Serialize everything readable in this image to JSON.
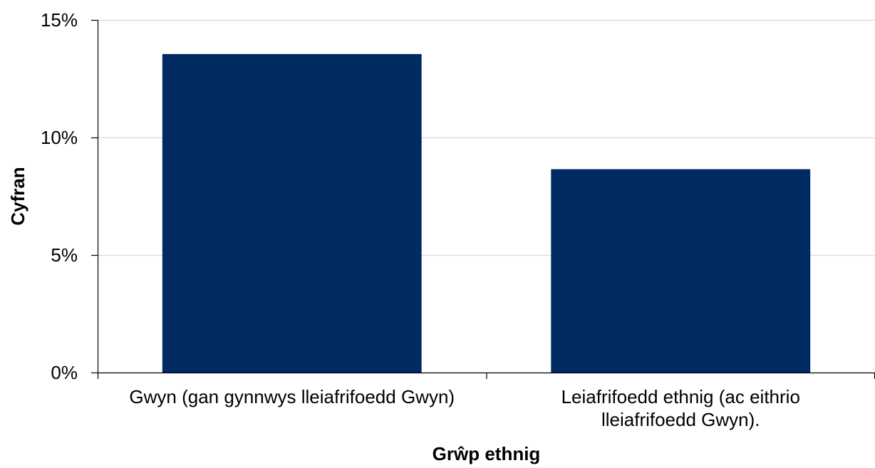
{
  "chart_data": {
    "type": "bar",
    "title": "",
    "xlabel": "Grŵp ethnig",
    "ylabel": "Cyfran",
    "categories": [
      [
        "Gwyn (gan gynnwys lleiafrifoedd Gwyn)"
      ],
      [
        "Leiafrifoedd ethnig (ac eithrio",
        "lleiafrifoedd Gwyn)."
      ]
    ],
    "values": [
      13.55,
      8.65
    ],
    "ylim": [
      0,
      15
    ],
    "yticks": [
      0,
      5,
      10,
      15
    ],
    "ytick_labels": [
      "0%",
      "5%",
      "10%",
      "15%"
    ],
    "grid": true,
    "legend": "none",
    "colors": {
      "bar": "#002B62",
      "grid": "#D9D9D9",
      "axis": "#000000"
    }
  }
}
